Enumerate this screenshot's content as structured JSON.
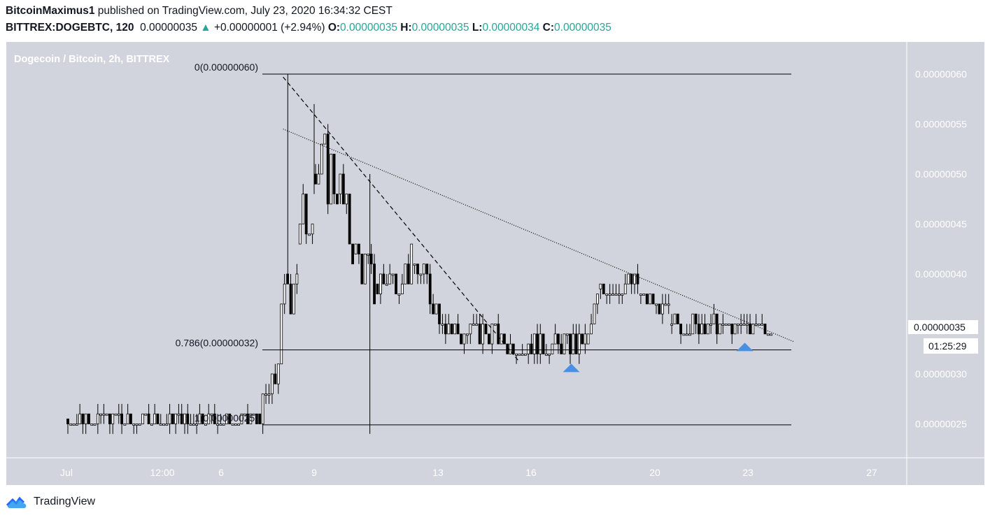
{
  "header": {
    "author": "BitcoinMaximus1",
    "published": "published on TradingView.com, July 23, 2020 16:34:32 CEST",
    "symbol": "BITTREX:DOGEBTC, 120",
    "last": "0.00000035",
    "arrow": "▲",
    "change": "+0.00000001 (+2.94%)",
    "o_label": "O:",
    "o_value": "0.00000035",
    "h_label": "H:",
    "h_value": "0.00000035",
    "l_label": "L:",
    "l_value": "0.00000034",
    "c_label": "C:",
    "c_value": "0.00000035"
  },
  "footer": {
    "brand": "TradingView",
    "logo_icon": "tradingview-cloud-icon"
  },
  "colors": {
    "chart_bg": "#d1d4dc",
    "candle": "#000000",
    "accent": "#26a69a",
    "marker": "#4a90e2",
    "text": "#131722"
  },
  "chart_data": {
    "type": "candlestick",
    "title": "Dogecoin / Bitcoin, 2h, BITTREX",
    "x_ticks": [
      "Jul",
      "12:00",
      "6",
      "9",
      "13",
      "16",
      "20",
      "23",
      "27"
    ],
    "y_ticks": [
      "0.00000060",
      "0.00000055",
      "0.00000050",
      "0.00000045",
      "0.00000040",
      "0.00000030",
      "0.00000025"
    ],
    "ylim": [
      2.2e-07,
      6.4e-07
    ],
    "current_price": "0.00000035",
    "countdown": "01:25:29",
    "fib_levels": [
      {
        "label": "0(0.00000060)",
        "price": 6e-07
      },
      {
        "label": "0.786(0.00000032)",
        "price": 3.24e-07
      },
      {
        "label": "1(0.00000025)",
        "price": 2.49e-07
      }
    ],
    "trendlines": [
      {
        "style": "dashed",
        "from": [
          8.0,
          5.97e-07
        ],
        "to": [
          15.6,
          3.13e-07
        ]
      },
      {
        "style": "dotted",
        "from": [
          8.0,
          5.45e-07
        ],
        "to": [
          24.5,
          3.32e-07
        ]
      }
    ],
    "markers": [
      {
        "type": "triangle-up",
        "x": 17.3,
        "price": 3.06e-07
      },
      {
        "type": "triangle-up",
        "x": 22.9,
        "price": 3.27e-07
      }
    ],
    "series": [
      {
        "segments": [
          {
            "x0": 1.0,
            "x1": 7.2,
            "p0": 2.55e-07,
            "p1": 2.55e-07,
            "vol": 8e-09
          },
          {
            "x0": 7.2,
            "x1": 7.7,
            "p0": 2.6e-07,
            "p1": 3e-07,
            "vol": 1e-08
          },
          {
            "x0": 7.7,
            "x1": 8.1,
            "p0": 3e-07,
            "p1": 4e-07,
            "vol": 3e-08
          },
          {
            "x0": 8.1,
            "x1": 8.5,
            "p0": 4e-07,
            "p1": 4.3e-07,
            "vol": 6e-08
          },
          {
            "x0": 8.5,
            "x1": 9.0,
            "p0": 4.3e-07,
            "p1": 5e-07,
            "vol": 4e-08
          },
          {
            "x0": 9.0,
            "x1": 9.8,
            "p0": 5e-07,
            "p1": 5e-07,
            "vol": 4e-08
          },
          {
            "x0": 9.8,
            "x1": 10.3,
            "p0": 4.8e-07,
            "p1": 4.2e-07,
            "vol": 3e-08
          },
          {
            "x0": 10.3,
            "x1": 11.0,
            "p0": 4.2e-07,
            "p1": 3.8e-07,
            "vol": 3e-08
          },
          {
            "x0": 11.0,
            "x1": 12.2,
            "p0": 3.9e-07,
            "p1": 4.1e-07,
            "vol": 2e-08
          },
          {
            "x0": 12.2,
            "x1": 13.5,
            "p0": 4.1e-07,
            "p1": 3.4e-07,
            "vol": 2e-08
          },
          {
            "x0": 13.5,
            "x1": 15.0,
            "p0": 3.4e-07,
            "p1": 3.4e-07,
            "vol": 1.5e-08
          },
          {
            "x0": 15.0,
            "x1": 17.8,
            "p0": 3.3e-07,
            "p1": 3.3e-07,
            "vol": 1e-08
          },
          {
            "x0": 17.8,
            "x1": 18.2,
            "p0": 3.3e-07,
            "p1": 3.85e-07,
            "vol": 2e-08
          },
          {
            "x0": 18.2,
            "x1": 19.5,
            "p0": 3.85e-07,
            "p1": 3.9e-07,
            "vol": 1.5e-08
          },
          {
            "x0": 19.5,
            "x1": 20.5,
            "p0": 3.8e-07,
            "p1": 3.55e-07,
            "vol": 1.2e-08
          },
          {
            "x0": 20.5,
            "x1": 23.8,
            "p0": 3.5e-07,
            "p1": 3.45e-07,
            "vol": 8e-09
          }
        ]
      }
    ]
  }
}
